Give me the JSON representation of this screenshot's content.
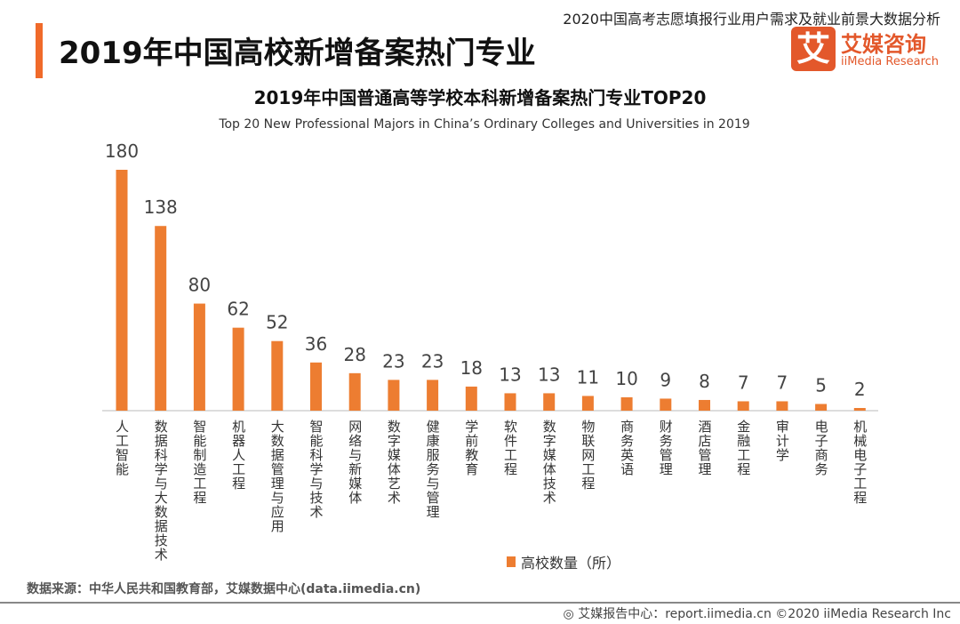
{
  "header": {
    "report_title": "2020中国高考志愿填报行业用户需求及就业前景大数据分析",
    "page_title": "2019年中国高校新增备案热门专业",
    "logo_mark": "艾",
    "logo_cn": "艾媒咨询",
    "logo_en": "iiMedia Research"
  },
  "chart_data": {
    "type": "bar",
    "title": "2019年中国普通高等学校本科新增备案热门专业TOP20",
    "subtitle": "Top 20 New Professional Majors in China’s Ordinary Colleges and Universities in 2019",
    "categories": [
      "人工智能",
      "数据科学与大数据技术",
      "智能制造工程",
      "机器人工程",
      "大数据管理与应用",
      "智能科学与技术",
      "网络与新媒体",
      "数字媒体艺术",
      "健康服务与管理",
      "学前教育",
      "软件工程",
      "数字媒体技术",
      "物联网工程",
      "商务英语",
      "财务管理",
      "酒店管理",
      "金融工程",
      "审计学",
      "电子商务",
      "机械电子工程"
    ],
    "series": [
      {
        "name": "高校数量（所）",
        "values": [
          180,
          138,
          80,
          62,
          52,
          36,
          28,
          23,
          23,
          18,
          13,
          13,
          11,
          10,
          9,
          8,
          7,
          7,
          5,
          2
        ]
      }
    ],
    "ylim": [
      0,
      180
    ],
    "grid": false,
    "legend": "bottom",
    "color": "#ed7d31"
  },
  "footer": {
    "source": "数据来源：中华人民共和国教育部，艾媒数据中心(data.iimedia.cn)",
    "credit": "艾媒报告中心：report.iimedia.cn  ©2020  iiMedia Research  Inc",
    "credit_icon": "globe-icon"
  }
}
